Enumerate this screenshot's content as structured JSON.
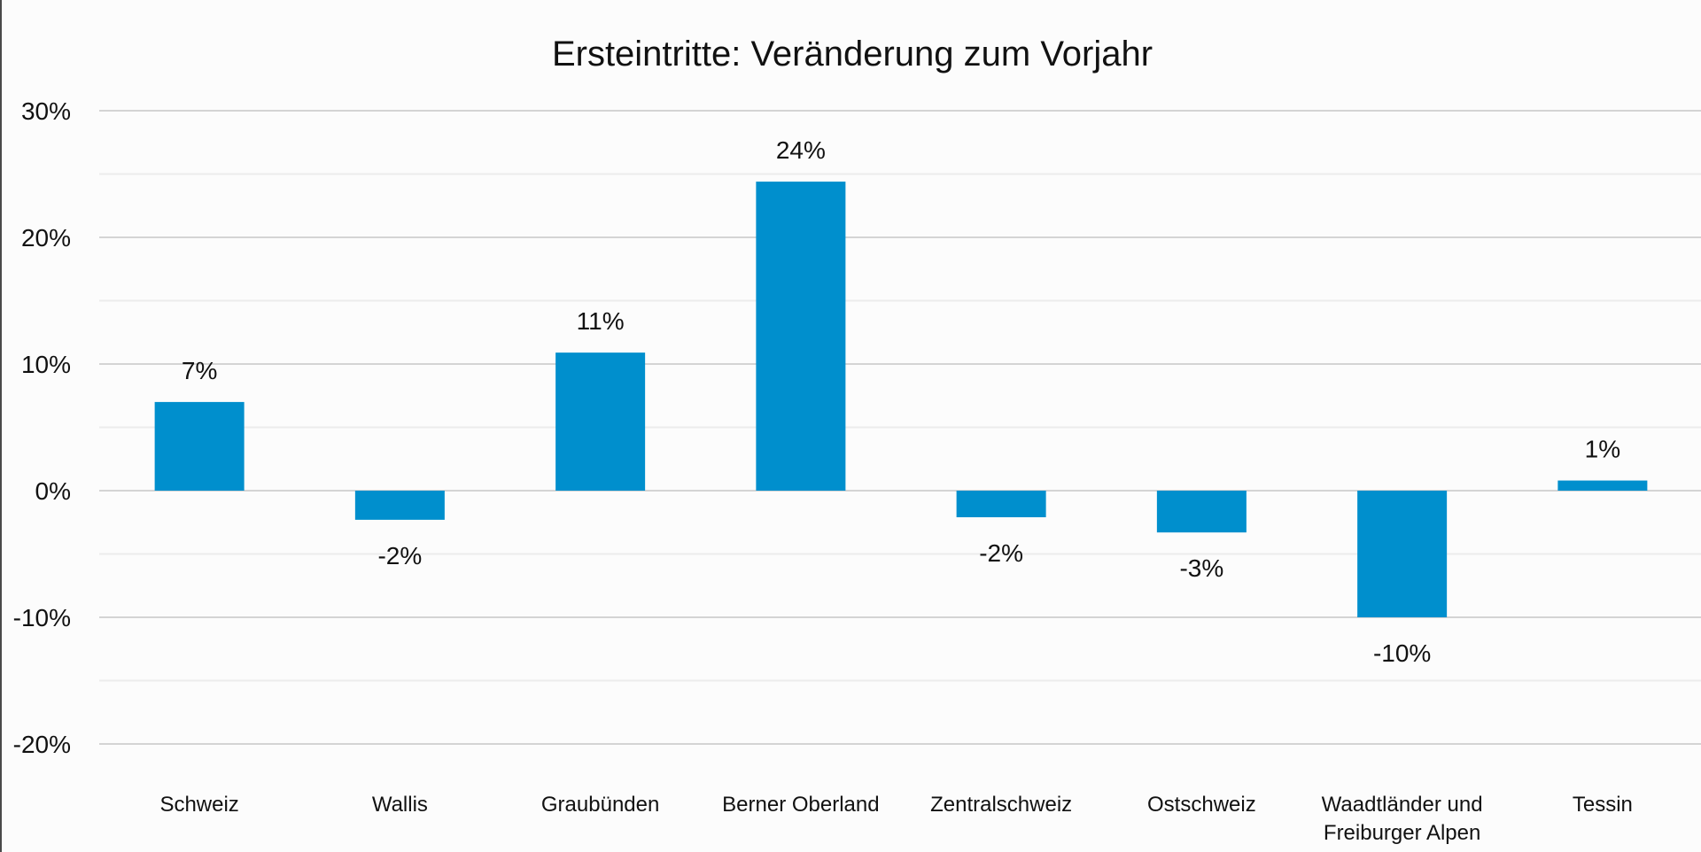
{
  "chart_data": {
    "type": "bar",
    "title": "Ersteintritte: Veränderung zum Vorjahr",
    "xlabel": "",
    "ylabel": "",
    "categories": [
      [
        "Schweiz"
      ],
      [
        "Wallis"
      ],
      [
        "Graubünden"
      ],
      [
        "Berner Oberland"
      ],
      [
        "Zentralschweiz"
      ],
      [
        "Ostschweiz"
      ],
      [
        "Waadtländer und",
        "Freiburger Alpen"
      ],
      [
        "Tessin"
      ]
    ],
    "values": [
      7.0,
      -2.3,
      10.9,
      24.4,
      -2.1,
      -3.3,
      -10.0,
      0.8
    ],
    "data_labels": [
      "7%",
      "-2%",
      "11%",
      "24%",
      "-2%",
      "-3%",
      "-10%",
      "1%"
    ],
    "ylim": [
      -20,
      30
    ],
    "yticks": [
      30,
      20,
      10,
      0,
      -10,
      -20
    ],
    "ytick_labels": [
      "30%",
      "20%",
      "10%",
      "0%",
      "-10%",
      "-20%"
    ],
    "minor_gridlines": [
      25,
      15,
      5,
      -5,
      -15
    ],
    "grid": true,
    "legend": "none",
    "bar_color": "#008fcd",
    "colors": {
      "background": "#fcfcfc",
      "grid_major": "#d4d4d4",
      "grid_minor": "#ececec",
      "text": "#111111"
    }
  }
}
